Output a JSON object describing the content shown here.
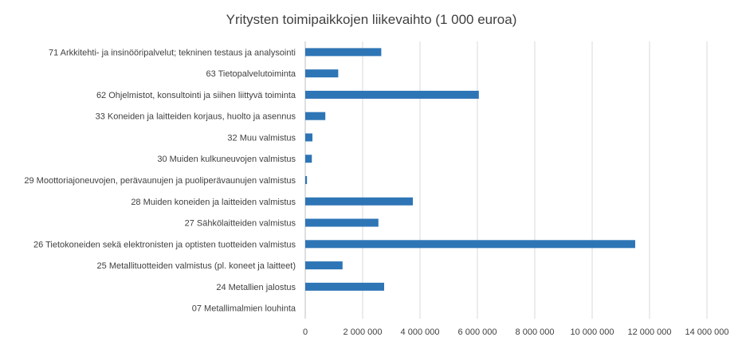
{
  "chart_data": {
    "type": "bar",
    "orientation": "horizontal",
    "title": "Yritysten toimipaikkojen liikevaihto (1 000 euroa)",
    "xlabel": "",
    "ylabel": "",
    "xlim": [
      0,
      14000000
    ],
    "grid": true,
    "legend": "none",
    "color": "#2e75b6",
    "categories": [
      "71 Arkkitehti- ja insinööripalvelut; tekninen testaus ja analysointi",
      "63 Tietopalvelutoiminta",
      "62 Ohjelmistot, konsultointi ja siihen liittyvä toiminta",
      "33 Koneiden ja laitteiden korjaus, huolto ja asennus",
      "32 Muu valmistus",
      "30 Muiden kulkuneuvojen valmistus",
      "29 Moottoriajoneuvojen, perävaunujen ja puoliperävaunujen valmistus",
      "28 Muiden koneiden ja laitteiden valmistus",
      "27 Sähkölaitteiden valmistus",
      "26 Tietokoneiden sekä elektronisten ja optisten tuotteiden valmistus",
      "25 Metallituotteiden valmistus (pl. koneet ja laitteet)",
      "24 Metallien jalostus",
      "07 Metallimalmien louhinta"
    ],
    "values": [
      2650000,
      1150000,
      6050000,
      700000,
      250000,
      230000,
      60000,
      3750000,
      2550000,
      11500000,
      1300000,
      2750000,
      0
    ],
    "ticks": [
      0,
      2000000,
      4000000,
      6000000,
      8000000,
      10000000,
      12000000,
      14000000
    ],
    "tick_labels": [
      "0",
      "2 000 000",
      "4 000 000",
      "6 000 000",
      "8 000 000",
      "10 000 000",
      "12 000 000",
      "14 000 000"
    ]
  }
}
